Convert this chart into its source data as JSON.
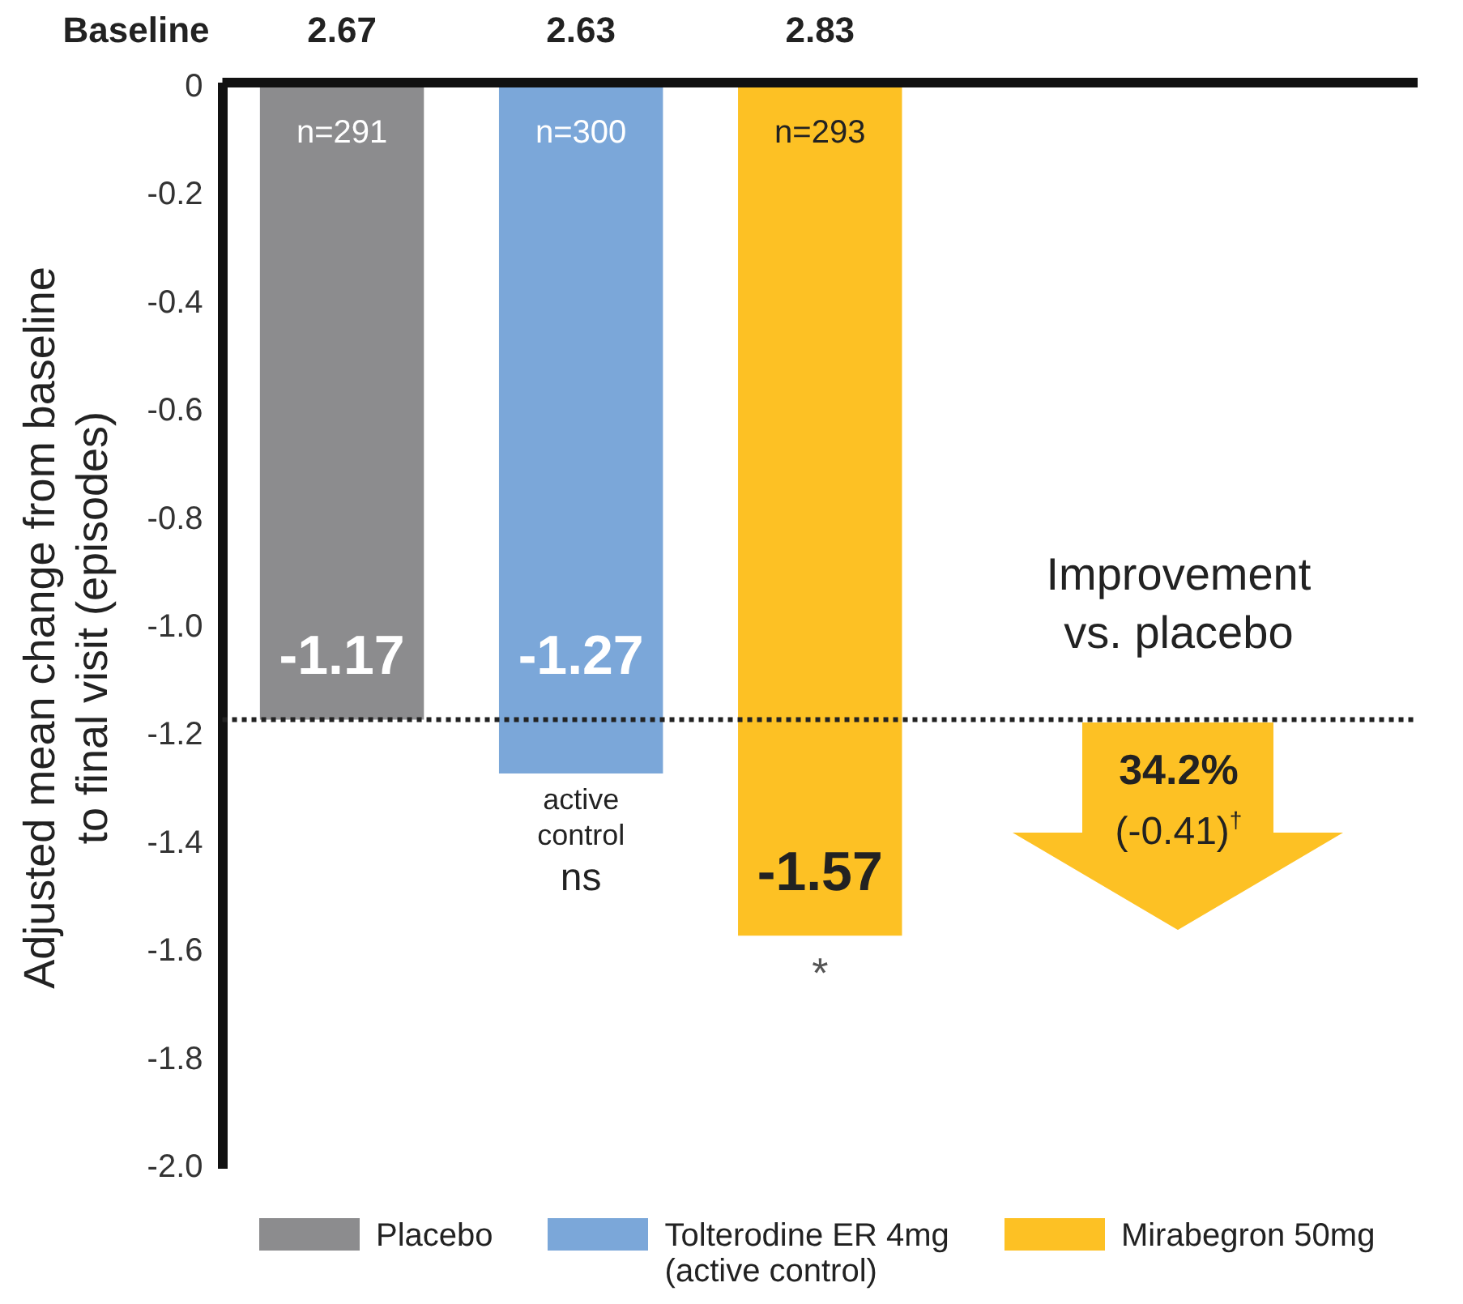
{
  "chart_data": {
    "type": "bar",
    "ylabel": "Adjusted mean change from baseline\nto final visit (episodes)",
    "categories": [
      null,
      null,
      null,
      null,
      null
    ],
    "series": [
      {
        "name": "Placebo",
        "color": "#8c8c8e",
        "values": [
          -1.17,
          null,
          null,
          null,
          null
        ]
      },
      {
        "name": "Tolterodine ER 4mg\n(active control)",
        "color": "#7ba7d9",
        "values": [
          null,
          -1.27,
          null,
          null,
          null
        ]
      },
      {
        "name": "Mirabegron 50mg",
        "color": "#fdc124",
        "values": [
          null,
          null,
          -1.57,
          null,
          null
        ]
      }
    ],
    "ylim": [
      -2,
      0
    ],
    "yticks": [
      0,
      -0.2,
      -0.4,
      -0.6,
      -0.8,
      {
        "value": -1,
        "label": "-1.0"
      },
      -1.2,
      -1.4,
      -1.6,
      -1.8,
      {
        "value": -2,
        "label": "-2.0"
      }
    ],
    "data_labels": true,
    "grid": false,
    "legend": "bottom",
    "ref_lines": [
      {
        "axis": "y",
        "value": -1.17,
        "color": "#222222",
        "line_style": "dotted"
      },
      {
        "axis": "y",
        "value": 0,
        "color": "#111111",
        "line_style": "solid"
      }
    ],
    "annotations": [
      "Baseline",
      "2.67",
      "2.63",
      "2.83",
      "n=291",
      "n=300",
      "n=293",
      "active\ncontrol\nns",
      "*",
      "Improvement\nvs. placebo",
      "34.2%",
      "(-0.41)$^{†}$"
    ]
  }
}
